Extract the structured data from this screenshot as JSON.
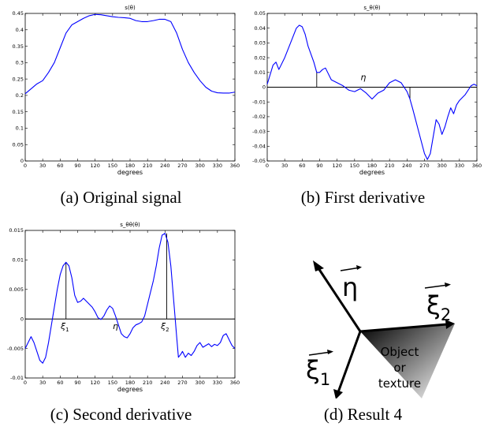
{
  "captions": {
    "a": "(a) Original signal",
    "b": "(b) First derivative",
    "c": "(c) Second derivative",
    "d": "(d) Result 4"
  },
  "chart_data": [
    {
      "id": "a",
      "type": "line",
      "title": "s(θ)",
      "xlabel": "degrees",
      "ylabel": "",
      "xlim": [
        0,
        360
      ],
      "ylim": [
        0,
        0.45
      ],
      "xticks": [
        0,
        30,
        60,
        90,
        120,
        150,
        180,
        210,
        240,
        270,
        300,
        330,
        360
      ],
      "yticks": [
        "0",
        "0.05",
        "0.1",
        "0.15",
        "0.2",
        "0.25",
        "0.3",
        "0.35",
        "0.4",
        "0.45"
      ],
      "ytick_values": [
        0,
        0.05,
        0.1,
        0.15,
        0.2,
        0.25,
        0.3,
        0.35,
        0.4,
        0.45
      ],
      "zero_line": false,
      "line_color": "#0000ff",
      "x": [
        0,
        10,
        20,
        30,
        40,
        50,
        60,
        70,
        80,
        90,
        100,
        110,
        120,
        130,
        140,
        150,
        160,
        170,
        180,
        190,
        200,
        210,
        220,
        230,
        240,
        250,
        260,
        270,
        280,
        290,
        300,
        310,
        320,
        330,
        340,
        350,
        360
      ],
      "y": [
        0.205,
        0.22,
        0.235,
        0.245,
        0.27,
        0.3,
        0.345,
        0.39,
        0.415,
        0.425,
        0.435,
        0.443,
        0.447,
        0.446,
        0.443,
        0.44,
        0.438,
        0.437,
        0.435,
        0.428,
        0.425,
        0.425,
        0.428,
        0.432,
        0.432,
        0.425,
        0.39,
        0.34,
        0.3,
        0.27,
        0.245,
        0.225,
        0.213,
        0.208,
        0.207,
        0.207,
        0.21
      ],
      "annotations": []
    },
    {
      "id": "b",
      "type": "line",
      "title": "s_θ(θ)",
      "xlabel": "degrees",
      "ylabel": "",
      "xlim": [
        0,
        360
      ],
      "ylim": [
        -0.05,
        0.05
      ],
      "xticks": [
        0,
        30,
        60,
        90,
        120,
        150,
        180,
        210,
        240,
        270,
        300,
        330,
        360
      ],
      "yticks": [
        "0.05",
        "0.04",
        "0.03",
        "0.02",
        "0.01",
        "0",
        "-0.01",
        "-0.02",
        "-0.03",
        "-0.04",
        "-0.05"
      ],
      "ytick_values": [
        0.05,
        0.04,
        0.03,
        0.02,
        0.01,
        0,
        -0.01,
        -0.02,
        -0.03,
        -0.04,
        -0.05
      ],
      "zero_line": true,
      "line_color": "#0000ff",
      "x": [
        0,
        10,
        15,
        20,
        30,
        40,
        50,
        55,
        60,
        65,
        70,
        80,
        85,
        90,
        95,
        100,
        110,
        120,
        130,
        140,
        150,
        155,
        160,
        170,
        180,
        190,
        200,
        210,
        220,
        230,
        240,
        245,
        250,
        260,
        270,
        275,
        280,
        290,
        295,
        300,
        305,
        310,
        315,
        320,
        325,
        330,
        340,
        350,
        355,
        360
      ],
      "y": [
        0.002,
        0.015,
        0.017,
        0.012,
        0.02,
        0.03,
        0.04,
        0.042,
        0.041,
        0.036,
        0.028,
        0.017,
        0.01,
        0.01,
        0.012,
        0.013,
        0.005,
        0.003,
        0.001,
        -0.002,
        -0.003,
        -0.002,
        -0.001,
        -0.004,
        -0.008,
        -0.004,
        -0.002,
        0.003,
        0.005,
        0.003,
        -0.003,
        -0.008,
        -0.015,
        -0.03,
        -0.045,
        -0.049,
        -0.045,
        -0.022,
        -0.025,
        -0.032,
        -0.027,
        -0.02,
        -0.014,
        -0.018,
        -0.012,
        -0.009,
        -0.005,
        0.001,
        0.002,
        0.001
      ],
      "stems": [
        {
          "x": 85,
          "y": 0.01
        },
        {
          "x": 245,
          "y": -0.008
        }
      ],
      "annotations": [
        {
          "text": "η",
          "x": 165,
          "y": 0.007
        }
      ]
    },
    {
      "id": "c",
      "type": "line",
      "title": "s_θθ(θ)",
      "xlabel": "degrees",
      "ylabel": "",
      "xlim": [
        0,
        360
      ],
      "ylim": [
        -0.01,
        0.015
      ],
      "xticks": [
        0,
        30,
        60,
        90,
        120,
        150,
        180,
        210,
        240,
        270,
        300,
        330,
        360
      ],
      "yticks": [
        "0.015",
        "0.01",
        "0.005",
        "0",
        "-0.005",
        "-0.01"
      ],
      "ytick_values": [
        0.015,
        0.01,
        0.005,
        0,
        -0.005,
        -0.01
      ],
      "zero_line": true,
      "line_color": "#0000ff",
      "x": [
        0,
        5,
        10,
        15,
        20,
        25,
        30,
        35,
        40,
        45,
        50,
        55,
        60,
        65,
        70,
        75,
        80,
        85,
        90,
        95,
        100,
        105,
        110,
        115,
        120,
        125,
        130,
        135,
        140,
        145,
        150,
        155,
        160,
        165,
        170,
        175,
        180,
        185,
        190,
        195,
        200,
        205,
        210,
        215,
        220,
        225,
        230,
        235,
        240,
        245,
        250,
        255,
        260,
        263,
        267,
        270,
        275,
        280,
        285,
        290,
        295,
        300,
        305,
        310,
        315,
        320,
        325,
        330,
        335,
        340,
        345,
        350,
        355,
        360
      ],
      "y": [
        -0.005,
        -0.004,
        -0.003,
        -0.004,
        -0.0055,
        -0.007,
        -0.0075,
        -0.0065,
        -0.004,
        -0.001,
        0.002,
        0.005,
        0.0075,
        0.009,
        0.0096,
        0.009,
        0.007,
        0.004,
        0.0028,
        0.003,
        0.0035,
        0.003,
        0.0025,
        0.002,
        0.0012,
        0.0002,
        -0.0001,
        0.0005,
        0.0015,
        0.0022,
        0.0018,
        0.0005,
        -0.001,
        -0.0025,
        -0.003,
        -0.0032,
        -0.0025,
        -0.0015,
        -0.001,
        -0.0008,
        -0.0005,
        0.0005,
        0.0025,
        0.0045,
        0.0065,
        0.009,
        0.012,
        0.0142,
        0.0145,
        0.013,
        0.009,
        0.003,
        -0.003,
        -0.0065,
        -0.006,
        -0.0055,
        -0.0065,
        -0.0058,
        -0.0062,
        -0.0055,
        -0.0045,
        -0.004,
        -0.0048,
        -0.0045,
        -0.0042,
        -0.0047,
        -0.0043,
        -0.0045,
        -0.004,
        -0.0028,
        -0.0025,
        -0.0035,
        -0.0045,
        -0.005
      ],
      "stems": [
        {
          "x": 70,
          "y": 0.0096
        },
        {
          "x": 243,
          "y": 0.0145
        }
      ],
      "annotations": [
        {
          "text": "ξ",
          "sub": "1",
          "x": 68,
          "y": -0.0012
        },
        {
          "text": "η",
          "x": 155,
          "y": -0.0012
        },
        {
          "text": "ξ",
          "sub": "2",
          "x": 240,
          "y": -0.0012
        }
      ]
    }
  ],
  "diagram_d": {
    "labels": {
      "eta": "η",
      "xi": "ξ",
      "xi1_sub": "1",
      "xi2_sub": "2",
      "object_line1": "Object",
      "object_line2": "or",
      "object_line3": "texture"
    }
  }
}
